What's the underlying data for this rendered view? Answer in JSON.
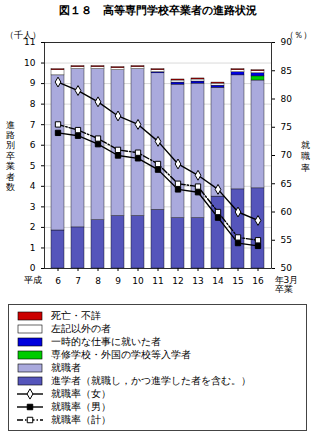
{
  "chart_data": {
    "type": "bar",
    "title": "図１８　高等専門学校卒業者の進路状況",
    "stacked": true,
    "grid": true,
    "legend": "bottom",
    "categories": [
      "6",
      "7",
      "8",
      "9",
      "10",
      "11",
      "12",
      "13",
      "14",
      "15",
      "16"
    ],
    "ylim": [
      0,
      11
    ],
    "yticks": [
      0,
      1,
      2,
      3,
      4,
      5,
      6,
      7,
      8,
      9,
      10,
      11
    ],
    "y2lim": [
      50,
      90
    ],
    "y2ticks": [
      50,
      55,
      60,
      65,
      70,
      75,
      80,
      85,
      90
    ],
    "ylabel": "進\n路\n別\n卒\n業\n者\n数",
    "y2label": "就\n職\n率",
    "annotations": [
      "（千人）",
      "（％）",
      "平成",
      "年3月\n卒業"
    ],
    "series": [
      {
        "name": "死亡・不詳",
        "type": "bar",
        "color": "#cc0000",
        "values": [
          0.05,
          0.05,
          0.05,
          0.05,
          0.05,
          0.05,
          0.05,
          0.05,
          0.05,
          0.05,
          0.05
        ]
      },
      {
        "name": "左記以外の者",
        "type": "bar",
        "color": "#ffffff",
        "values": [
          0.25,
          0.1,
          0.1,
          0.1,
          0.1,
          0.1,
          0.1,
          0.1,
          0.1,
          0.1,
          0.1
        ]
      },
      {
        "name": "一時的な仕事に就いた者",
        "type": "bar",
        "color": "#0000dd",
        "values": [
          0.0,
          0.0,
          0.0,
          0.0,
          0.0,
          0.05,
          0.1,
          0.1,
          0.1,
          0.15,
          0.15
        ]
      },
      {
        "name": "専修学校・外国の学校等入学者",
        "type": "bar",
        "color": "#00cc00",
        "values": [
          0.0,
          0.0,
          0.0,
          0.0,
          0.0,
          0.0,
          0.0,
          0.0,
          0.0,
          0.0,
          0.2
        ]
      },
      {
        "name": "就職者",
        "type": "bar",
        "color": "#aaaadd",
        "values": [
          7.55,
          7.7,
          7.35,
          7.1,
          7.15,
          6.65,
          6.5,
          6.55,
          5.3,
          5.55,
          5.25
        ]
      },
      {
        "name": "進学者（就職し，かつ進学した者を含む。）",
        "type": "bar",
        "color": "#5555bb",
        "values": [
          1.85,
          2.0,
          2.35,
          2.55,
          2.55,
          2.85,
          2.45,
          2.45,
          3.5,
          3.85,
          3.9
        ]
      },
      {
        "name": "就職率（女）",
        "type": "line",
        "axis": "y2",
        "color": "black",
        "marker": "diamond_open",
        "line_style": "solid",
        "values": [
          83.0,
          81.5,
          79.5,
          77.0,
          75.5,
          72.5,
          68.5,
          66.5,
          64.0,
          60.0,
          58.5
        ]
      },
      {
        "name": "就職率（男）",
        "type": "line",
        "axis": "y2",
        "color": "black",
        "marker": "square",
        "line_style": "solid",
        "values": [
          74.0,
          73.5,
          72.0,
          70.0,
          69.5,
          67.5,
          64.0,
          63.5,
          59.0,
          54.5,
          54.0
        ]
      },
      {
        "name": "就職率（計）",
        "type": "line",
        "axis": "y2",
        "color": "black",
        "marker": "square_open",
        "line_style": "dashdot",
        "values": [
          75.5,
          74.5,
          73.0,
          71.0,
          70.5,
          68.5,
          65.0,
          64.5,
          60.0,
          55.5,
          55.0
        ]
      }
    ]
  }
}
